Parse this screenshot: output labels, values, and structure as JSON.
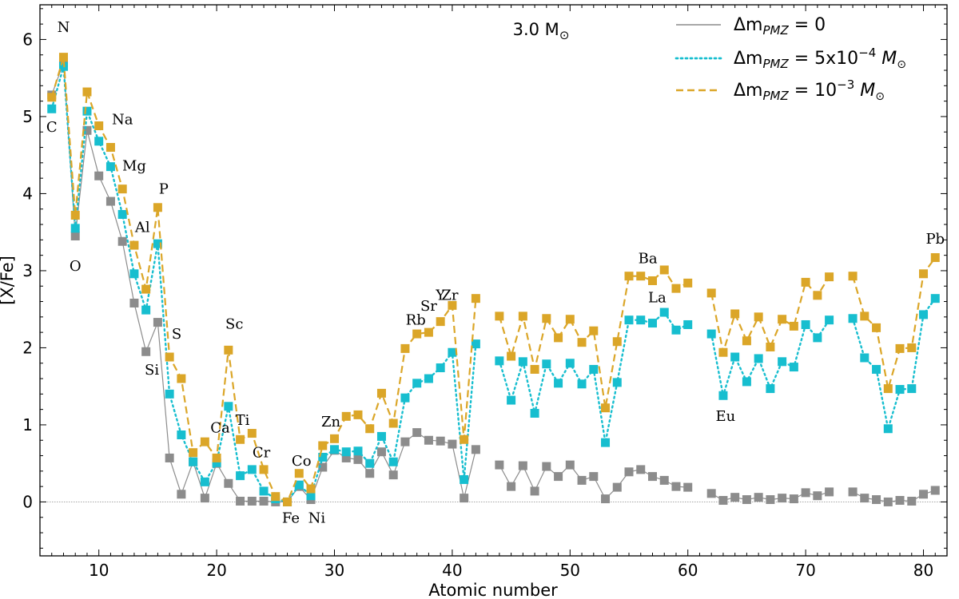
{
  "chart_data": {
    "type": "line",
    "title": "3.0 M⊙",
    "xlabel": "Atomic number",
    "ylabel": "[X/Fe]",
    "xlim": [
      5,
      82
    ],
    "ylim": [
      -0.7,
      6.45
    ],
    "xticks": [
      10,
      20,
      30,
      40,
      50,
      60,
      70,
      80
    ],
    "yticks": [
      0,
      1,
      2,
      3,
      4,
      5,
      6
    ],
    "reference_line_y": 0,
    "series": [
      {
        "name": "Δm_PMZ = 0",
        "legend_main": "Δm",
        "legend_sub": "PMZ",
        "legend_rest": " = 0",
        "style": "solid",
        "color": "#8c8c8c",
        "marker_color": "#8c8c8c",
        "x": [
          6,
          7,
          8,
          9,
          10,
          11,
          12,
          13,
          14,
          15,
          16,
          17,
          18,
          19,
          20,
          21,
          22,
          23,
          24,
          25,
          26,
          27,
          28,
          29,
          30,
          31,
          32,
          33,
          34,
          35,
          36,
          37,
          38,
          39,
          40,
          41,
          42,
          null,
          44,
          45,
          46,
          47,
          48,
          49,
          50,
          51,
          52,
          53,
          54,
          55,
          56,
          57,
          58,
          59,
          60,
          null,
          62,
          63,
          64,
          65,
          66,
          67,
          68,
          69,
          70,
          71,
          72,
          null,
          74,
          75,
          76,
          77,
          78,
          79,
          80,
          81
        ],
        "y": [
          5.28,
          5.7,
          3.45,
          4.82,
          4.23,
          3.9,
          3.38,
          2.58,
          1.95,
          2.33,
          0.57,
          0.1,
          0.52,
          0.05,
          0.5,
          0.24,
          0.01,
          0.01,
          0.01,
          0.0,
          0.0,
          0.2,
          0.03,
          0.45,
          0.67,
          0.57,
          0.55,
          0.37,
          0.65,
          0.35,
          0.78,
          0.9,
          0.8,
          0.79,
          0.75,
          0.05,
          0.68,
          null,
          0.48,
          0.2,
          0.47,
          0.14,
          0.46,
          0.33,
          0.48,
          0.28,
          0.33,
          0.04,
          0.19,
          0.39,
          0.42,
          0.33,
          0.28,
          0.2,
          0.19,
          null,
          0.11,
          0.02,
          0.06,
          0.03,
          0.06,
          0.03,
          0.05,
          0.04,
          0.12,
          0.08,
          0.13,
          null,
          0.13,
          0.05,
          0.03,
          0.0,
          0.02,
          0.01,
          0.1,
          0.15
        ]
      },
      {
        "name": "Δm_PMZ = 5x10^-4 M⊙",
        "legend_main": "Δm",
        "legend_sub": "PMZ",
        "legend_rest": " = 5x10",
        "legend_sup": "−4",
        "legend_unit": " M",
        "legend_unit_sub": "⊙",
        "style": "dotted",
        "color": "#17becf",
        "marker_color": "#17becf",
        "x": [
          6,
          7,
          8,
          9,
          10,
          11,
          12,
          13,
          14,
          15,
          16,
          17,
          18,
          19,
          20,
          21,
          22,
          23,
          24,
          25,
          26,
          27,
          28,
          29,
          30,
          31,
          32,
          33,
          34,
          35,
          36,
          37,
          38,
          39,
          40,
          41,
          42,
          null,
          44,
          45,
          46,
          47,
          48,
          49,
          50,
          51,
          52,
          53,
          54,
          55,
          56,
          57,
          58,
          59,
          60,
          null,
          62,
          63,
          64,
          65,
          66,
          67,
          68,
          69,
          70,
          71,
          72,
          null,
          74,
          75,
          76,
          77,
          78,
          79,
          80,
          81
        ],
        "y": [
          5.1,
          5.65,
          3.55,
          5.07,
          4.68,
          4.35,
          3.73,
          2.96,
          2.49,
          3.35,
          1.4,
          0.87,
          0.52,
          0.26,
          0.51,
          1.24,
          0.34,
          0.42,
          0.14,
          0.04,
          0.0,
          0.22,
          0.08,
          0.58,
          0.68,
          0.65,
          0.66,
          0.5,
          0.85,
          0.52,
          1.35,
          1.54,
          1.6,
          1.74,
          1.94,
          0.29,
          2.05,
          null,
          1.83,
          1.32,
          1.82,
          1.15,
          1.79,
          1.54,
          1.8,
          1.53,
          1.72,
          0.77,
          1.55,
          2.36,
          2.36,
          2.32,
          2.46,
          2.23,
          2.3,
          null,
          2.18,
          1.38,
          1.88,
          1.56,
          1.86,
          1.47,
          1.82,
          1.75,
          2.3,
          2.13,
          2.36,
          null,
          2.38,
          1.87,
          1.72,
          0.95,
          1.46,
          1.47,
          2.43,
          2.64
        ]
      },
      {
        "name": "Δm_PMZ = 10^-3 M⊙",
        "legend_main": "Δm",
        "legend_sub": "PMZ",
        "legend_rest": " = 10",
        "legend_sup": "−3",
        "legend_unit": " M",
        "legend_unit_sub": "⊙",
        "style": "dashed",
        "color": "#dba628",
        "marker_color": "#dba628",
        "x": [
          6,
          7,
          8,
          9,
          10,
          11,
          12,
          13,
          14,
          15,
          16,
          17,
          18,
          19,
          20,
          21,
          22,
          23,
          24,
          25,
          26,
          27,
          28,
          29,
          30,
          31,
          32,
          33,
          34,
          35,
          36,
          37,
          38,
          39,
          40,
          41,
          42,
          null,
          44,
          45,
          46,
          47,
          48,
          49,
          50,
          51,
          52,
          53,
          54,
          55,
          56,
          57,
          58,
          59,
          60,
          null,
          62,
          63,
          64,
          65,
          66,
          67,
          68,
          69,
          70,
          71,
          72,
          null,
          74,
          75,
          76,
          77,
          78,
          79,
          80,
          81
        ],
        "y": [
          5.25,
          5.77,
          3.72,
          5.32,
          4.88,
          4.6,
          4.06,
          3.33,
          2.76,
          3.82,
          1.88,
          1.6,
          0.64,
          0.78,
          0.57,
          1.97,
          0.81,
          0.89,
          0.42,
          0.07,
          0.0,
          0.37,
          0.17,
          0.73,
          0.82,
          1.11,
          1.13,
          0.95,
          1.41,
          1.02,
          1.99,
          2.18,
          2.2,
          2.34,
          2.55,
          0.81,
          2.64,
          null,
          2.41,
          1.89,
          2.41,
          1.72,
          2.38,
          2.13,
          2.37,
          2.07,
          2.22,
          1.22,
          2.08,
          2.93,
          2.93,
          2.87,
          3.01,
          2.77,
          2.84,
          null,
          2.71,
          1.94,
          2.44,
          2.09,
          2.4,
          2.01,
          2.37,
          2.28,
          2.85,
          2.68,
          2.92,
          null,
          2.93,
          2.41,
          2.26,
          1.47,
          1.99,
          2.0,
          2.96,
          3.17
        ]
      }
    ],
    "annotations": [
      {
        "text": "N",
        "x": 7,
        "y": 6.1
      },
      {
        "text": "C",
        "x": 6,
        "y": 4.8
      },
      {
        "text": "O",
        "x": 8,
        "y": 3.0
      },
      {
        "text": "Na",
        "x": 12.0,
        "y": 4.9
      },
      {
        "text": "Mg",
        "x": 13.0,
        "y": 4.3
      },
      {
        "text": "P",
        "x": 15.5,
        "y": 4.0
      },
      {
        "text": "Al",
        "x": 13.7,
        "y": 3.5
      },
      {
        "text": "S",
        "x": 16.6,
        "y": 2.12
      },
      {
        "text": "Si",
        "x": 14.5,
        "y": 1.65
      },
      {
        "text": "Sc",
        "x": 21.5,
        "y": 2.25
      },
      {
        "text": "Ti",
        "x": 22.2,
        "y": 1.0
      },
      {
        "text": "Ca",
        "x": 20.3,
        "y": 0.9
      },
      {
        "text": "Cr",
        "x": 23.8,
        "y": 0.58
      },
      {
        "text": "Co",
        "x": 27.2,
        "y": 0.47
      },
      {
        "text": "Zn",
        "x": 29.7,
        "y": 0.98
      },
      {
        "text": "Fe",
        "x": 26.3,
        "y": -0.27
      },
      {
        "text": "Ni",
        "x": 28.5,
        "y": -0.27
      },
      {
        "text": "Rb",
        "x": 36.9,
        "y": 2.3
      },
      {
        "text": "Sr",
        "x": 38.0,
        "y": 2.48
      },
      {
        "text": "Y",
        "x": 39.0,
        "y": 2.62
      },
      {
        "text": "Zr",
        "x": 39.8,
        "y": 2.62
      },
      {
        "text": "Ba",
        "x": 56.6,
        "y": 3.1
      },
      {
        "text": "La",
        "x": 57.4,
        "y": 2.59
      },
      {
        "text": "Eu",
        "x": 63.2,
        "y": 1.05
      },
      {
        "text": "Pb",
        "x": 81.0,
        "y": 3.35
      }
    ]
  }
}
